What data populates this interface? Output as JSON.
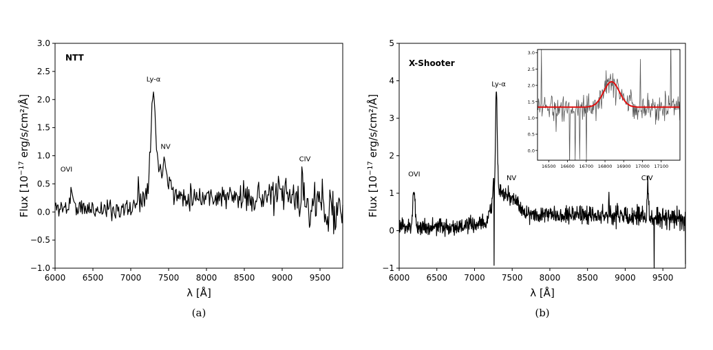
{
  "chart_data": [
    {
      "type": "line",
      "panel_title": "NTT",
      "caption": "(a)",
      "xlabel": "λ [Å]",
      "ylabel": "Flux [10^-17 erg/s/cm²/Å]",
      "xlim": [
        6000,
        9800
      ],
      "ylim": [
        -1.0,
        3.0
      ],
      "xticks": [
        6000,
        6500,
        7000,
        7500,
        8000,
        8500,
        9000,
        9500
      ],
      "yticks": [
        -1.0,
        -0.5,
        0.0,
        0.5,
        1.0,
        1.5,
        2.0,
        2.5,
        3.0
      ],
      "ytick_labels": [
        "−1.0",
        "−0.5",
        "0.0",
        "0.5",
        "1.0",
        "1.5",
        "2.0",
        "2.5",
        "3.0"
      ],
      "grid": false,
      "annotations": [
        {
          "text": "OVI",
          "x": 6150,
          "y": 0.72
        },
        {
          "text": "Ly-α",
          "x": 7300,
          "y": 2.32
        },
        {
          "text": "NV",
          "x": 7460,
          "y": 1.12
        },
        {
          "text": "CIV",
          "x": 9300,
          "y": 0.9
        }
      ],
      "series": [
        {
          "color": "#000000",
          "seed": 11,
          "step": 10,
          "noise": [
            [
              6000,
              0.13
            ],
            [
              8300,
              0.17
            ],
            [
              8800,
              0.2
            ],
            [
              9300,
              0.3
            ],
            [
              9800,
              0.45
            ]
          ],
          "baseline": [
            [
              6000,
              0.08
            ],
            [
              6500,
              0.05
            ],
            [
              7000,
              0.05
            ],
            [
              7150,
              0.2
            ],
            [
              7300,
              0.75
            ],
            [
              7450,
              0.65
            ],
            [
              7600,
              0.28
            ],
            [
              8000,
              0.28
            ],
            [
              8500,
              0.25
            ],
            [
              9000,
              0.3
            ],
            [
              9500,
              0.1
            ],
            [
              9800,
              0.0
            ]
          ],
          "peaks": [
            {
              "x": 7297,
              "sigma": 30,
              "amp": 1.35
            },
            {
              "x": 7450,
              "sigma": 35,
              "amp": 0.25
            },
            {
              "x": 6220,
              "sigma": 18,
              "amp": 0.35
            },
            {
              "x": 7100,
              "sigma": 8,
              "amp": 0.5
            },
            {
              "x": 9275,
              "sigma": 12,
              "amp": 0.3
            }
          ]
        }
      ]
    },
    {
      "type": "line",
      "panel_title": "X-Shooter",
      "caption": "(b)",
      "xlabel": "λ [Å]",
      "ylabel": "Flux [10^-17 erg/s/cm²/Å]",
      "xlim": [
        6000,
        9800
      ],
      "ylim": [
        -1,
        5
      ],
      "xticks": [
        6000,
        6500,
        7000,
        7500,
        8000,
        8500,
        9000,
        9500
      ],
      "yticks": [
        -1,
        0,
        1,
        2,
        3,
        4,
        5
      ],
      "ytick_labels": [
        "−1",
        "0",
        "1",
        "2",
        "3",
        "4",
        "5"
      ],
      "grid": false,
      "annotations": [
        {
          "text": "OVI",
          "x": 6200,
          "y": 1.45
        },
        {
          "text": "Ly-α",
          "x": 7320,
          "y": 3.85
        },
        {
          "text": "NV",
          "x": 7490,
          "y": 1.35
        },
        {
          "text": "CIV",
          "x": 9290,
          "y": 1.35
        }
      ],
      "series": [
        {
          "color": "#000000",
          "seed": 23,
          "step": 4,
          "noise": [
            [
              6000,
              0.17
            ],
            [
              8000,
              0.17
            ],
            [
              9800,
              0.22
            ]
          ],
          "baseline": [
            [
              6000,
              0.1
            ],
            [
              6800,
              0.1
            ],
            [
              7150,
              0.2
            ],
            [
              7280,
              1.0
            ],
            [
              7450,
              0.95
            ],
            [
              7700,
              0.45
            ],
            [
              8000,
              0.45
            ],
            [
              9000,
              0.4
            ],
            [
              9800,
              0.3
            ]
          ],
          "peaks": [
            {
              "x": 7290,
              "sigma": 12,
              "amp": 2.7
            },
            {
              "x": 7250,
              "sigma": 6,
              "amp": 0.6
            },
            {
              "x": 6195,
              "sigma": 15,
              "amp": 1.0
            },
            {
              "x": 9300,
              "sigma": 8,
              "amp": 0.9
            },
            {
              "x": 8785,
              "sigma": 4,
              "amp": 0.55
            }
          ],
          "dips": [
            {
              "x": 7260,
              "amp": -2.1
            },
            {
              "x": 9385,
              "amp": -1.9
            },
            {
              "x": 9800,
              "amp": -0.8
            }
          ]
        }
      ],
      "inset": {
        "type": "line",
        "xlim": [
          16440,
          17200
        ],
        "ylim": [
          -0.3,
          3.1
        ],
        "xticks": [
          16500,
          16600,
          16700,
          16800,
          16900,
          17000,
          17100
        ],
        "yticks": [
          0.0,
          0.5,
          1.0,
          1.5,
          2.0,
          2.5,
          3.0
        ],
        "ytick_labels": [
          "0.0",
          "0.5",
          "1.0",
          "1.5",
          "2.0",
          "2.5",
          "3.0"
        ],
        "data_series": {
          "color": "#555555",
          "seed": 5,
          "step": 3,
          "noise": 0.32,
          "dips": [
            {
              "x": 16610,
              "amp": -1.7
            },
            {
              "x": 16640,
              "amp": -1.7
            },
            {
              "x": 16665,
              "amp": -1.7
            },
            {
              "x": 16700,
              "amp": -1.6
            },
            {
              "x": 16540,
              "amp": -0.9
            },
            {
              "x": 16460,
              "amp": 2.0
            },
            {
              "x": 17150,
              "amp": 2.2
            },
            {
              "x": 16990,
              "amp": 1.5
            }
          ]
        },
        "fit": {
          "color": "#e01010",
          "continuum": 1.33,
          "center": 16835,
          "sigma": 42,
          "amp": 0.78
        }
      }
    }
  ]
}
